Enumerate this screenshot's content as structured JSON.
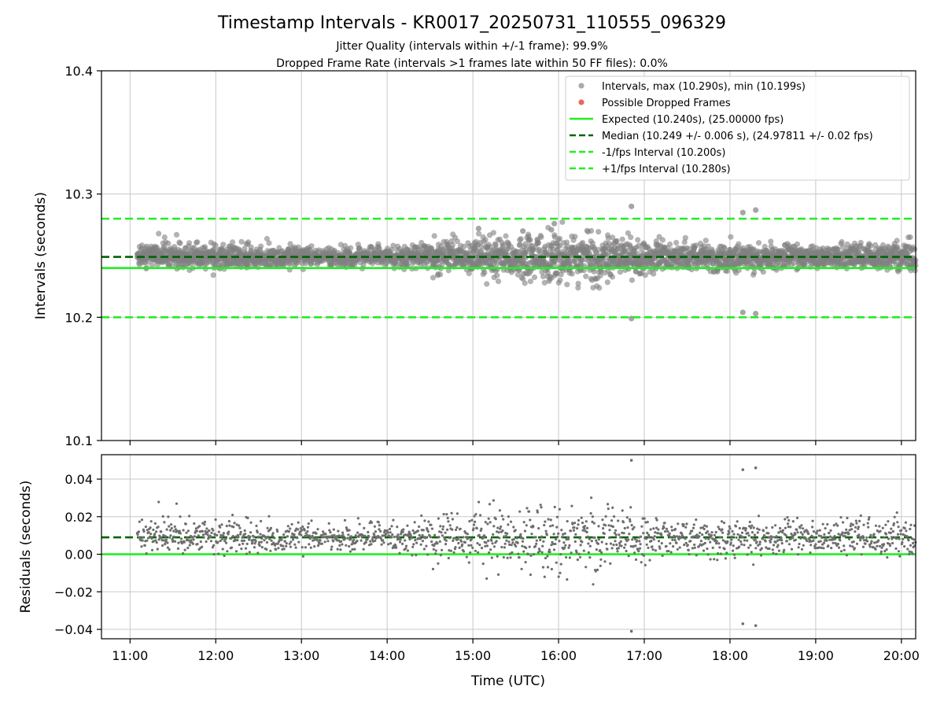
{
  "figure": {
    "title": "Timestamp Intervals - KR0017_20250731_110555_096329",
    "subtitle_1": "Jitter Quality (intervals within +/-1 frame): 99.9%",
    "subtitle_2": "Dropped Frame Rate (intervals >1 frames late within 50 FF files): 0.0%",
    "colors": {
      "points": "#808080",
      "dropped": "#e8584f",
      "expected": "#22ee22",
      "median": "#006400",
      "interval_bounds": "#22ee22",
      "grid": "#c8c8c8"
    }
  },
  "chart_data": [
    {
      "type": "scatter",
      "panel": "intervals",
      "title": "",
      "xlabel": "",
      "ylabel": "Intervals (seconds)",
      "ylim": [
        10.1,
        10.4
      ],
      "yticks": [
        10.1,
        10.2,
        10.3,
        10.4
      ],
      "ytick_labels": [
        "10.1",
        "10.2",
        "10.3",
        "10.4"
      ],
      "xlim": [
        "10:40",
        "20:10"
      ],
      "xticks": [
        "11:00",
        "12:00",
        "13:00",
        "14:00",
        "15:00",
        "16:00",
        "17:00",
        "18:00",
        "19:00",
        "20:00"
      ],
      "grid": true,
      "legend_position": "top-right",
      "legend": [
        {
          "label": "Intervals, max (10.290s), min (10.199s)",
          "kind": "marker",
          "color": "#a0a0a0"
        },
        {
          "label": "Possible Dropped Frames",
          "kind": "marker",
          "color": "#e8584f"
        },
        {
          "label": "Expected (10.240s), (25.00000 fps)",
          "kind": "solid",
          "color": "#22ee22"
        },
        {
          "label": "Median (10.249 +/- 0.006 s), (24.97811 +/- 0.02 fps)",
          "kind": "dashed",
          "color": "#006400"
        },
        {
          "label": "-1/fps Interval (10.200s)",
          "kind": "dashed",
          "color": "#22ee22"
        },
        {
          "label": "+1/fps Interval (10.280s)",
          "kind": "dashed",
          "color": "#22ee22"
        }
      ],
      "reference_lines": [
        {
          "name": "Expected",
          "y": 10.24,
          "style": "solid",
          "color": "#22ee22"
        },
        {
          "name": "Median",
          "y": 10.249,
          "style": "dashed",
          "color": "#006400"
        },
        {
          "name": "-1/fps Interval",
          "y": 10.2,
          "style": "dashed",
          "color": "#22ee22"
        },
        {
          "name": "+1/fps Interval",
          "y": 10.28,
          "style": "dashed",
          "color": "#22ee22"
        }
      ],
      "summary": {
        "max": 10.29,
        "min": 10.199,
        "median": 10.249,
        "spread": 0.006,
        "expected": 10.24
      },
      "density_profile": [
        {
          "t": "11:05",
          "center": 10.249,
          "spread": 0.005
        },
        {
          "t": "12:00",
          "center": 10.249,
          "spread": 0.005
        },
        {
          "t": "13:00",
          "center": 10.249,
          "spread": 0.0035
        },
        {
          "t": "14:00",
          "center": 10.249,
          "spread": 0.0035
        },
        {
          "t": "14:45",
          "center": 10.249,
          "spread": 0.006
        },
        {
          "t": "15:40",
          "center": 10.249,
          "spread": 0.009
        },
        {
          "t": "16:30",
          "center": 10.248,
          "spread": 0.009
        },
        {
          "t": "17:20",
          "center": 10.249,
          "spread": 0.005
        },
        {
          "t": "18:00",
          "center": 10.248,
          "spread": 0.006
        },
        {
          "t": "19:00",
          "center": 10.249,
          "spread": 0.004
        },
        {
          "t": "20:10",
          "center": 10.249,
          "spread": 0.006
        }
      ],
      "notable_points": [
        {
          "t": "16:51",
          "y": 10.29
        },
        {
          "t": "16:51",
          "y": 10.199
        },
        {
          "t": "18:09",
          "y": 10.285
        },
        {
          "t": "18:18",
          "y": 10.287
        },
        {
          "t": "18:09",
          "y": 10.204
        },
        {
          "t": "18:18",
          "y": 10.203
        },
        {
          "t": "15:57",
          "y": 10.276
        },
        {
          "t": "15:55",
          "y": 10.271
        },
        {
          "t": "15:35",
          "y": 10.27
        },
        {
          "t": "15:04",
          "y": 10.272
        }
      ]
    },
    {
      "type": "scatter",
      "panel": "residuals",
      "title": "",
      "xlabel": "Time (UTC)",
      "ylabel": "Residuals (seconds)",
      "ylim": [
        -0.045,
        0.053
      ],
      "yticks": [
        -0.04,
        -0.02,
        0.0,
        0.02,
        0.04
      ],
      "ytick_labels": [
        "−0.04",
        "−0.02",
        "0.00",
        "0.02",
        "0.04"
      ],
      "xlim": [
        "10:40",
        "20:10"
      ],
      "xticks": [
        "11:00",
        "12:00",
        "13:00",
        "14:00",
        "15:00",
        "16:00",
        "17:00",
        "18:00",
        "19:00",
        "20:00"
      ],
      "xtick_labels": [
        "11:00",
        "12:00",
        "13:00",
        "14:00",
        "15:00",
        "16:00",
        "17:00",
        "18:00",
        "19:00",
        "20:00"
      ],
      "grid": true,
      "reference_lines": [
        {
          "name": "Zero",
          "y": 0.0,
          "style": "solid",
          "color": "#22ee22"
        },
        {
          "name": "Median offset",
          "y": 0.009,
          "style": "dashed",
          "color": "#006400"
        }
      ],
      "notable_points": [
        {
          "t": "16:51",
          "y": 0.05
        },
        {
          "t": "16:51",
          "y": -0.041
        },
        {
          "t": "18:09",
          "y": 0.045
        },
        {
          "t": "18:18",
          "y": 0.046
        },
        {
          "t": "18:09",
          "y": -0.037
        },
        {
          "t": "18:18",
          "y": -0.038
        }
      ]
    }
  ]
}
